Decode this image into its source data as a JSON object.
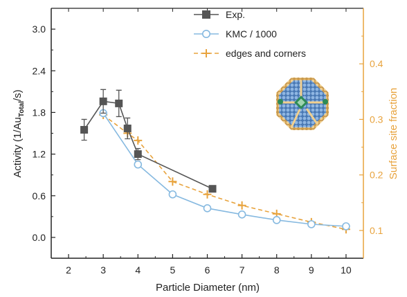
{
  "chart_data": {
    "type": "line",
    "xlabel": "Particle Diameter (nm)",
    "ylabel": {
      "prefix": "Activity (1/Au",
      "sub": "Total",
      "suffix": "/s)"
    },
    "y2label": "Surface site fraction",
    "xlim": [
      1.5,
      10.5
    ],
    "ylim": [
      -0.3,
      3.3
    ],
    "y2lim": [
      0.05,
      0.5
    ],
    "x_ticks": [
      2,
      3,
      4,
      5,
      6,
      7,
      8,
      9,
      10
    ],
    "x_tick_labels": [
      "2",
      "3",
      "4",
      "5",
      "6",
      "7",
      "8",
      "9",
      "10"
    ],
    "y_ticks": [
      0.0,
      0.6,
      1.2,
      1.8,
      2.4,
      3.0
    ],
    "y_tick_labels": [
      "0.0",
      "0.6",
      "1.2",
      "1.8",
      "2.4",
      "3.0"
    ],
    "y2_ticks": [
      0.1,
      0.2,
      0.3,
      0.4
    ],
    "y2_tick_labels": [
      "0.1",
      "0.2",
      "0.3",
      "0.4"
    ],
    "legend_position": "top-right",
    "grid": false,
    "series": [
      {
        "name": "Exp.",
        "axis": "left",
        "color": "#555555",
        "marker": "square",
        "x": [
          2.45,
          3.0,
          3.45,
          3.7,
          4.0,
          6.15
        ],
        "y": [
          1.55,
          1.96,
          1.93,
          1.57,
          1.2,
          0.7
        ],
        "err": [
          0.15,
          0.17,
          0.19,
          0.15,
          0.08,
          0.03
        ]
      },
      {
        "name": "KMC / 1000",
        "axis": "left",
        "color": "#86b9e0",
        "marker": "circle",
        "x": [
          3,
          4,
          5,
          6,
          7,
          8,
          9,
          10
        ],
        "y": [
          1.79,
          1.05,
          0.62,
          0.42,
          0.33,
          0.25,
          0.19,
          0.16
        ]
      },
      {
        "name": "edges and corners",
        "axis": "right",
        "color": "#e8a33d",
        "marker": "plus",
        "dashed": true,
        "x": [
          3,
          3.7,
          4,
          5,
          6,
          7,
          8,
          9,
          10
        ],
        "y": [
          0.308,
          0.275,
          0.262,
          0.188,
          0.165,
          0.145,
          0.13,
          0.115,
          0.102
        ]
      }
    ],
    "colors": {
      "axis_left": "#222222",
      "axis_right": "#e8a33d",
      "particle_blue": "#5b8cc4",
      "particle_orange": "#e6b66a",
      "particle_green": "#2e8b57"
    },
    "inset_icon": "truncated-octahedron-nanoparticle-icon"
  }
}
